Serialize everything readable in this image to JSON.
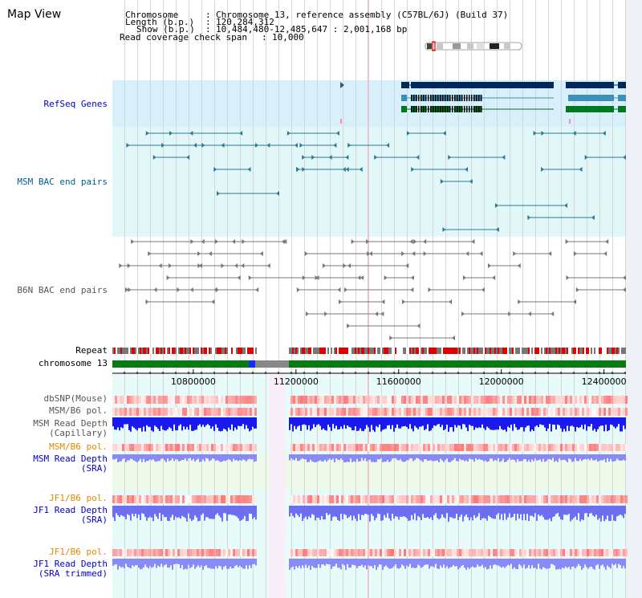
{
  "view_title": "Map View",
  "info": {
    "chromosome_label": "Chromosome",
    "chromosome_value": "Chromosome 13, reference assembly (C57BL/6J) (Build 37)",
    "length_label": "Length (b.p.)",
    "length_value": "120,284,312",
    "show_label": "Show (b.p.)",
    "show_value": "10,484,480-12,485,647 : 2,001,168 bp",
    "coverage_label": "Read coverage check span",
    "coverage_value": "10,000"
  },
  "tracks": {
    "refseq": "RefSeq Genes",
    "msm_bac": "MSM BAC end pairs",
    "b6n_bac": "B6N BAC end pairs",
    "repeat": "Repeat",
    "chromosome": "chromosome 13",
    "dbsnp": "dbSNP(Mouse)",
    "msm_pol": "MSM/B6 pol.",
    "msm_depth_cap": "MSM Read Depth\n(Capillary)",
    "msm_pol2": "MSM/B6 pol.",
    "msm_depth_sra": "MSM Read Depth\n(SRA)",
    "jf1_pol": "JF1/B6 pol.",
    "jf1_depth_sra": "JF1 Read Depth\n(SRA)",
    "jf1_pol2": "JF1/B6 pol.",
    "jf1_depth_trim": "JF1 Read Depth\n(SRA trimmed)"
  },
  "axis": {
    "range_bp": [
      10484480,
      12485647
    ],
    "ticks": [
      {
        "bp": 10800000,
        "label": "10800000"
      },
      {
        "bp": 11200000,
        "label": "11200000"
      },
      {
        "bp": 11600000,
        "label": "11600000"
      },
      {
        "bp": 12000000,
        "label": "12000000"
      },
      {
        "bp": 12400000,
        "label": "12400000"
      }
    ]
  },
  "colors": {
    "refseq_label": "#0000cc",
    "msm_label": "#005f87",
    "b6n_label": "#555555",
    "pol_orange": "#e08a00",
    "depth_blue": "#0000cc",
    "refseq_bg": "#d7f0fb",
    "msm_bg": "#e2f7f7",
    "gene_dark": "#002858",
    "gene_mid": "#3f8fb8",
    "gene_green": "#007a20",
    "bac_teal": "#2a7a98",
    "bac_gray": "#777777"
  },
  "gap_region_bp": [
    11095000,
    11160000
  ]
}
